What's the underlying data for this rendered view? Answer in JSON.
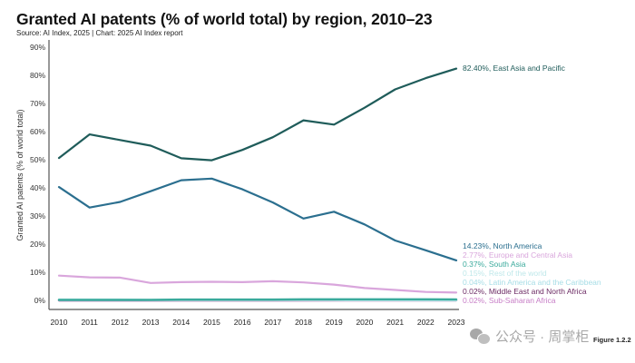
{
  "header": {
    "title": "Granted AI patents (% of world total) by region, 2010–23",
    "subtitle": "Source: AI Index, 2025 | Chart: 2025 AI Index report"
  },
  "footer": {
    "figure_label": "Figure 1.2.2",
    "watermark": "公众号 · 周掌柜"
  },
  "chart_data": {
    "type": "line",
    "title": "Granted AI patents (% of world total) by region, 2010–23",
    "xlabel": "",
    "ylabel": "Granted AI patents (% of world total)",
    "x": [
      2010,
      2011,
      2012,
      2013,
      2014,
      2015,
      2016,
      2017,
      2018,
      2019,
      2020,
      2021,
      2022,
      2023
    ],
    "x_tick_labels": [
      "2010",
      "2011",
      "2012",
      "2013",
      "2014",
      "2015",
      "2016",
      "2017",
      "2018",
      "2019",
      "2020",
      "2021",
      "2022",
      "2023"
    ],
    "ylim": [
      0,
      90
    ],
    "y_ticks": [
      0,
      10,
      20,
      30,
      40,
      50,
      60,
      70,
      80,
      90
    ],
    "y_tick_labels": [
      "0%",
      "10%",
      "20%",
      "30%",
      "40%",
      "50%",
      "60%",
      "70%",
      "80%",
      "90%"
    ],
    "grid": false,
    "legend": "end-labels-right",
    "series": [
      {
        "name": "East Asia and Pacific",
        "end_label": "82.40%, East Asia and Pacific",
        "color": "#1f5c5a",
        "values": [
          50.6,
          59.0,
          57.0,
          55.0,
          50.5,
          49.8,
          53.5,
          58.0,
          64.0,
          62.5,
          68.5,
          75.0,
          79.0,
          82.4
        ]
      },
      {
        "name": "North America",
        "end_label": "14.23%, North America",
        "color": "#2b6f8f",
        "values": [
          40.3,
          33.0,
          35.0,
          38.8,
          42.7,
          43.3,
          39.5,
          34.8,
          29.1,
          31.5,
          27.0,
          21.3,
          17.8,
          14.23
        ]
      },
      {
        "name": "Europe and Central Asia",
        "end_label": "2.77%, Europe and Central Asia",
        "color": "#d9a6dc",
        "values": [
          8.8,
          8.2,
          8.1,
          6.2,
          6.5,
          6.6,
          6.5,
          6.8,
          6.4,
          5.6,
          4.4,
          3.7,
          3.0,
          2.77
        ]
      },
      {
        "name": "South Asia",
        "end_label": "0.37%, South Asia",
        "color": "#3aaa9c",
        "values": [
          0.2,
          0.2,
          0.2,
          0.2,
          0.3,
          0.3,
          0.3,
          0.3,
          0.4,
          0.4,
          0.4,
          0.4,
          0.4,
          0.37
        ]
      },
      {
        "name": "Rest of the world",
        "end_label": "0.15%, Rest of the world",
        "color": "#bfe8ea",
        "values": [
          0.3,
          0.3,
          0.3,
          0.2,
          0.2,
          0.2,
          0.2,
          0.2,
          0.2,
          0.2,
          0.2,
          0.2,
          0.2,
          0.15
        ]
      },
      {
        "name": "Latin America and the Caribbean",
        "end_label": "0.04%, Latin America and the Caribbean",
        "color": "#a6dde6",
        "values": [
          0.1,
          0.1,
          0.1,
          0.1,
          0.1,
          0.1,
          0.1,
          0.1,
          0.1,
          0.1,
          0.05,
          0.05,
          0.04,
          0.04
        ]
      },
      {
        "name": "Middle East and North Africa",
        "end_label": "0.02%, Middle East and North Africa",
        "color": "#6b2a63",
        "values": [
          0.02,
          0.02,
          0.02,
          0.02,
          0.02,
          0.02,
          0.02,
          0.02,
          0.02,
          0.02,
          0.02,
          0.02,
          0.02,
          0.02
        ]
      },
      {
        "name": "Sub-Saharan Africa",
        "end_label": "0.02%, Sub-Saharan Africa",
        "color": "#c77dc6",
        "values": [
          0.01,
          0.01,
          0.01,
          0.01,
          0.01,
          0.01,
          0.01,
          0.01,
          0.01,
          0.02,
          0.02,
          0.02,
          0.02,
          0.02
        ]
      }
    ]
  }
}
